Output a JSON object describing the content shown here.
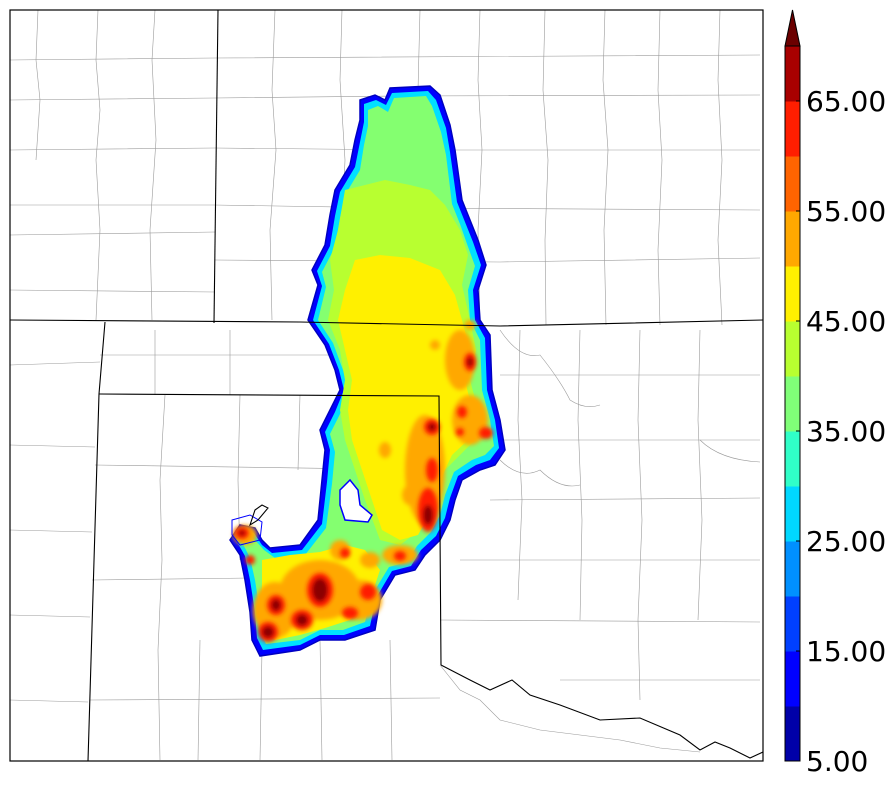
{
  "colorbar": {
    "tick_labels": [
      "5.00",
      "15.00",
      "25.00",
      "35.00",
      "45.00",
      "55.00",
      "65.00"
    ],
    "tick_values": [
      5,
      15,
      25,
      35,
      45,
      55,
      65
    ],
    "min": 5,
    "max": 70,
    "extend": "max",
    "colors": [
      "#0000a8",
      "#0000ff",
      "#0040ff",
      "#0090ff",
      "#00d8ff",
      "#30ffc8",
      "#80ff78",
      "#b8ff30",
      "#fff000",
      "#ffa800",
      "#ff6400",
      "#ff1e00",
      "#a80000",
      "#6b0000"
    ]
  },
  "map": {
    "region": "radar reflectivity composite over state/county boundaries"
  }
}
